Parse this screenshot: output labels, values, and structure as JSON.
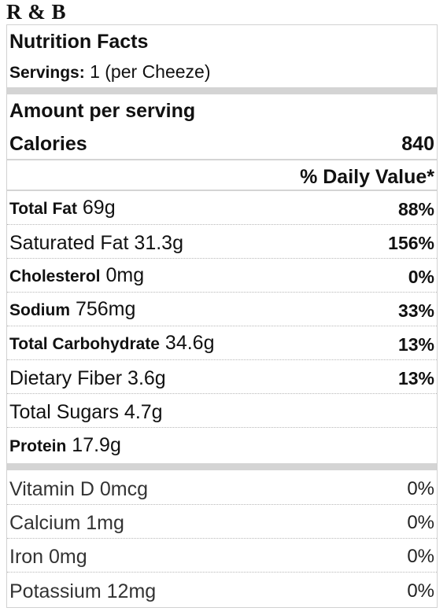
{
  "title": "R & B",
  "header": {
    "heading": "Nutrition Facts",
    "servings_label": "Servings:",
    "servings_value": "1 (per Cheeze)",
    "amount_per_serving": "Amount per serving",
    "calories_label": "Calories",
    "calories_value": "840",
    "daily_value_label": "% Daily Value*"
  },
  "nutrients": [
    {
      "label": "Total Fat",
      "amount": "69g",
      "percent": "88%"
    },
    {
      "label": "Saturated Fat 31.3g",
      "amount": "",
      "percent": "156%"
    },
    {
      "label": "Cholesterol",
      "amount": "0mg",
      "percent": "0%"
    },
    {
      "label": "Sodium",
      "amount": "756mg",
      "percent": "33%"
    },
    {
      "label": "Total Carbohydrate",
      "amount": "34.6g",
      "percent": "13%"
    },
    {
      "label": "Dietary Fiber 3.6g",
      "amount": "",
      "percent": "13%"
    },
    {
      "label": "Total Sugars 4.7g",
      "amount": "",
      "percent": ""
    },
    {
      "label": "Protein",
      "amount": "17.9g",
      "percent": ""
    }
  ],
  "vitamins": [
    {
      "label": "Vitamin D 0mcg",
      "percent": "0%"
    },
    {
      "label": "Calcium 1mg",
      "percent": "0%"
    },
    {
      "label": "Iron 0mg",
      "percent": "0%"
    },
    {
      "label": "Potassium 12mg",
      "percent": "0%"
    }
  ]
}
